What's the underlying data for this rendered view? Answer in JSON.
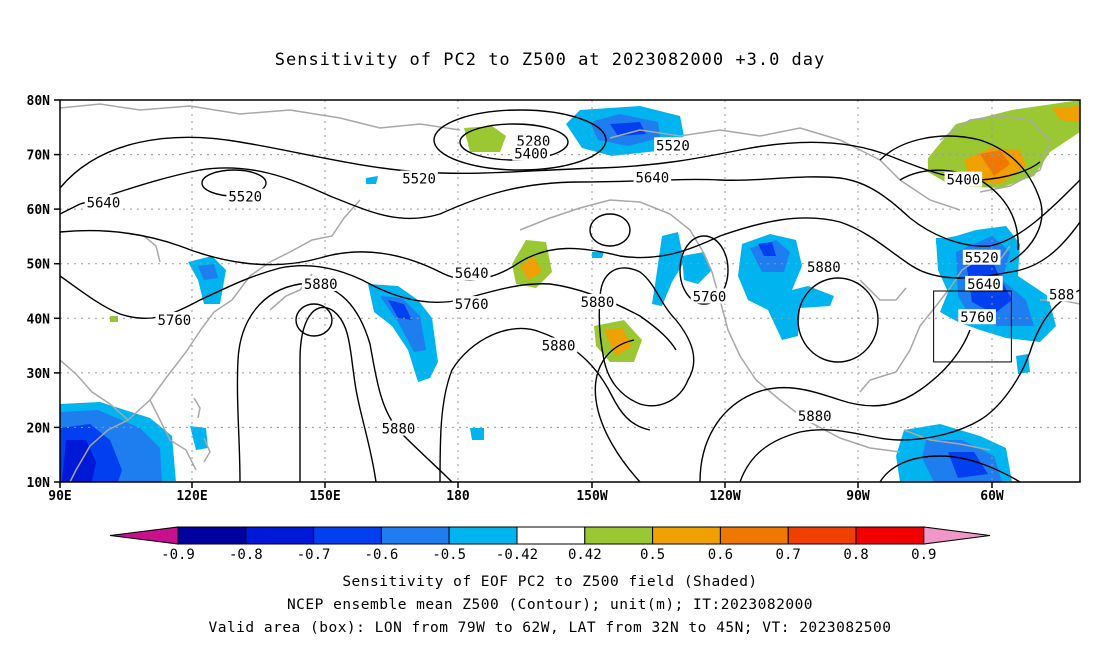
{
  "title": "Sensitivity of PC2 to Z500 at 2023082000 +3.0 day",
  "lat_labels": [
    "80N",
    "70N",
    "60N",
    "50N",
    "40N",
    "30N",
    "20N",
    "10N"
  ],
  "lon_labels": [
    "90E",
    "120E",
    "150E",
    "180",
    "150W",
    "120W",
    "90W",
    "60W"
  ],
  "contour_labels": [
    {
      "text": "5280",
      "lon": 193.5,
      "lat": 72.5
    },
    {
      "text": "5400",
      "lon": 193,
      "lat": 70.2
    },
    {
      "text": "5520",
      "lon": 224,
      "lat": 71.7
    },
    {
      "text": "5520",
      "lon": 130.5,
      "lat": 62.3
    },
    {
      "text": "5520",
      "lon": 168.5,
      "lat": 65.6
    },
    {
      "text": "5640",
      "lon": 99.5,
      "lat": 61.2
    },
    {
      "text": "5640",
      "lon": 219.5,
      "lat": 65.8
    },
    {
      "text": "5640",
      "lon": 180,
      "lat": 48.3
    },
    {
      "text": "5520",
      "lon": 291.5,
      "lat": 51.1
    },
    {
      "text": "5400",
      "lon": 287.5,
      "lat": 65.4
    },
    {
      "text": "5640",
      "lon": 292,
      "lat": 46.3
    },
    {
      "text": "5760",
      "lon": 290.5,
      "lat": 40.2
    },
    {
      "text": "5760",
      "lon": 180,
      "lat": 42.6
    },
    {
      "text": "5760",
      "lon": 115,
      "lat": 39.7
    },
    {
      "text": "5760",
      "lon": 232,
      "lat": 44.0
    },
    {
      "text": "5880",
      "lon": 257,
      "lat": 49.4
    },
    {
      "text": "5880",
      "lon": 147,
      "lat": 46.3
    },
    {
      "text": "5880",
      "lon": 207.5,
      "lat": 43.0
    },
    {
      "text": "5880",
      "lon": 199,
      "lat": 35.0
    },
    {
      "text": "5880",
      "lon": 255,
      "lat": 22.1
    },
    {
      "text": "5880",
      "lon": 164,
      "lat": 19.8
    },
    {
      "text": "588",
      "lon": 309,
      "lat": 44.4
    }
  ],
  "valid_box": {
    "lon_min": -79,
    "lon_max": -62,
    "lat_min": 32,
    "lat_max": 45
  },
  "colorbar": {
    "labels": [
      "-0.9",
      "-0.8",
      "-0.7",
      "-0.6",
      "-0.5",
      "-0.42",
      "0.42",
      "0.5",
      "0.6",
      "0.7",
      "0.8",
      "0.9"
    ],
    "colors": [
      "#0000a0",
      "#0018d8",
      "#0040f0",
      "#1e7ef0",
      "#00b4f0",
      "#ffffff",
      "#9ac832",
      "#f0a000",
      "#f07800",
      "#f04000",
      "#f00000"
    ],
    "left_arrow_color": "#c8108c",
    "right_arrow_color": "#f096c8"
  },
  "footer": {
    "line1": "Sensitivity of EOF PC2 to Z500 field (Shaded)",
    "line2": "NCEP ensemble mean Z500 (Contour); unit(m); IT:2023082000",
    "line3": "Valid area (box): LON from 79W to 62W, LAT from 32N to 45N; VT: 2023082500"
  }
}
